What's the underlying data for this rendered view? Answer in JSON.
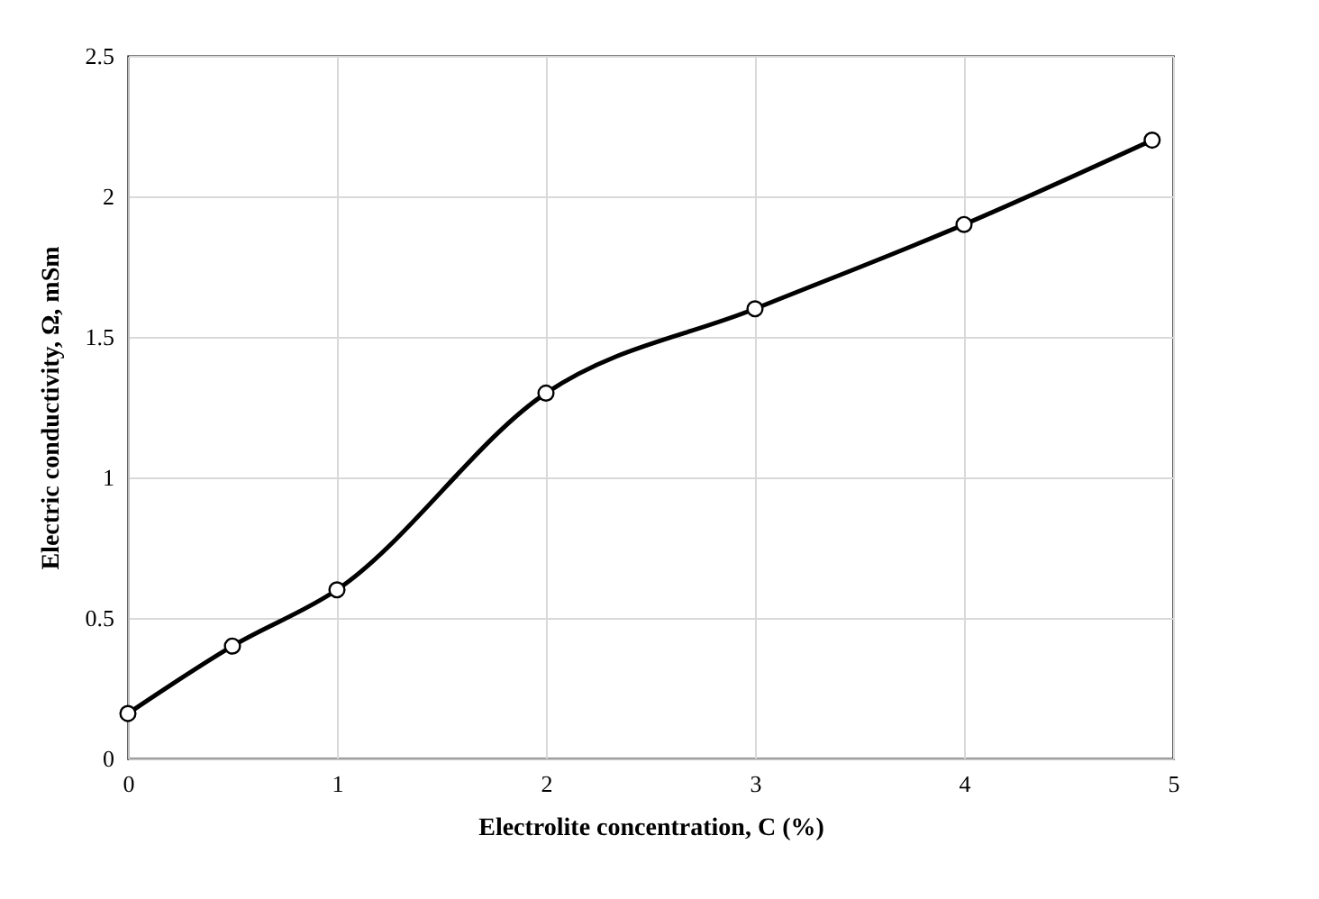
{
  "chart_data": {
    "type": "line",
    "xlabel": "Electrolite concentration, C (%)",
    "ylabel": "Electric conductivity, Ω, mSm",
    "x": [
      0,
      0.5,
      1,
      2,
      3,
      4,
      4.9
    ],
    "series": [
      {
        "color": "#000000",
        "values": [
          0.16,
          0.4,
          0.6,
          1.3,
          1.6,
          1.9,
          2.2
        ]
      }
    ],
    "xlim": [
      0,
      5
    ],
    "xticks": [
      0,
      1,
      2,
      3,
      4,
      5
    ],
    "ylim": [
      0,
      2.5
    ],
    "yticks": [
      0,
      0.5,
      1,
      1.5,
      2,
      2.5
    ],
    "grid": true,
    "marker": "circle",
    "line_style": "solid"
  }
}
